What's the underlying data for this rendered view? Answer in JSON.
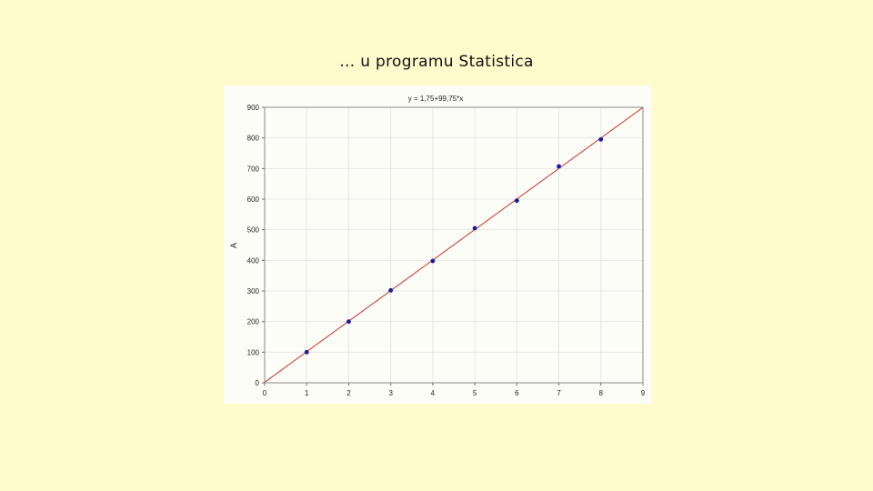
{
  "slide": {
    "title": "… u programu Statistica"
  },
  "chart_data": {
    "type": "scatter",
    "title": "y = 1,75+99,75*x",
    "xlabel": "",
    "ylabel": "A",
    "xlim": [
      0,
      9
    ],
    "ylim": [
      0,
      900
    ],
    "x_ticks": [
      "0",
      "1",
      "2",
      "3",
      "4",
      "5",
      "6",
      "7",
      "8",
      "9"
    ],
    "y_ticks": [
      "0",
      "100",
      "200",
      "300",
      "400",
      "500",
      "600",
      "700",
      "800",
      "900"
    ],
    "grid": true,
    "points": {
      "x": [
        1,
        2,
        3,
        4,
        5,
        6,
        7,
        8
      ],
      "y": [
        100,
        200,
        302,
        398,
        505,
        595,
        707,
        795
      ]
    },
    "fit_line": {
      "intercept": 1.75,
      "slope": 99.75
    },
    "colors": {
      "points": "#1a1aa0",
      "fit_line": "#c83232",
      "grid": "#e6e6e6"
    }
  }
}
